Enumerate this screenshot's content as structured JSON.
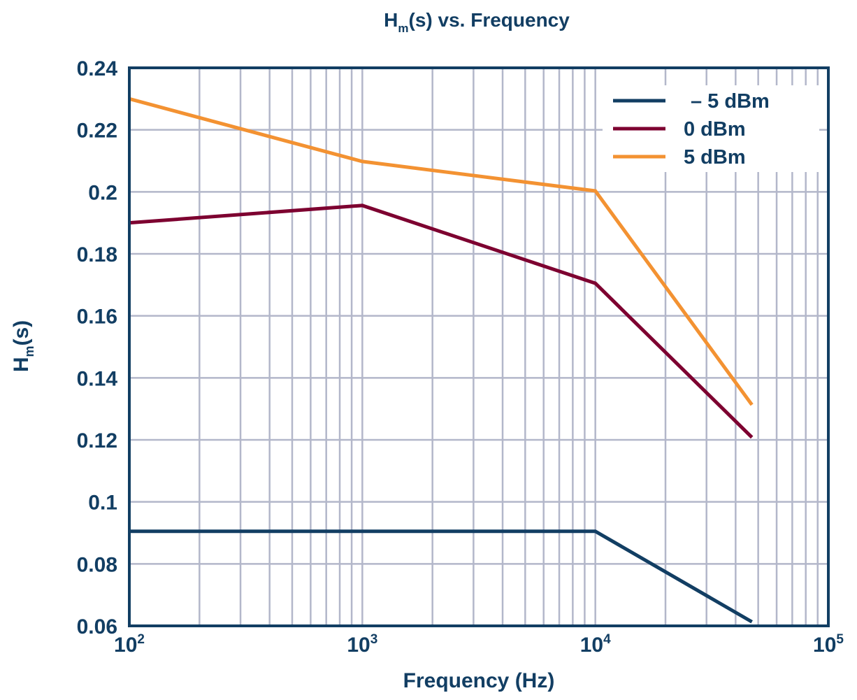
{
  "chart_data": {
    "type": "line",
    "title_main": "H",
    "title_sub": "m",
    "title_rest": "(s) vs. Frequency",
    "xlabel": "Frequency (Hz)",
    "ylabel_main": "H",
    "ylabel_sub": "m",
    "ylabel_rest": "(s)",
    "xscale": "log",
    "xlim": [
      100,
      100000
    ],
    "ylim": [
      0.06,
      0.24
    ],
    "yticks": [
      "0.06",
      "0.08",
      "0.1",
      "0.12",
      "0.14",
      "0.16",
      "0.18",
      "0.2",
      "0.22",
      "0.24"
    ],
    "xticks": [
      {
        "base": "10",
        "exp": "2"
      },
      {
        "base": "10",
        "exp": "3"
      },
      {
        "base": "10",
        "exp": "4"
      },
      {
        "base": "10",
        "exp": "5"
      }
    ],
    "grid": true,
    "legend_position": "top-right",
    "series": [
      {
        "name": "– 5 dBm",
        "color": "#123e63",
        "x": [
          100,
          1000,
          10000,
          47000
        ],
        "y": [
          0.0905,
          0.0905,
          0.0905,
          0.0613
        ]
      },
      {
        "name": "0 dBm",
        "color": "#7d0030",
        "x": [
          100,
          1000,
          10000,
          47000
        ],
        "y": [
          0.19,
          0.1956,
          0.1705,
          0.1208
        ]
      },
      {
        "name": "5 dBm",
        "color": "#f39232",
        "x": [
          100,
          1000,
          10000,
          47000
        ],
        "y": [
          0.23,
          0.2098,
          0.2003,
          0.1313
        ]
      }
    ]
  }
}
